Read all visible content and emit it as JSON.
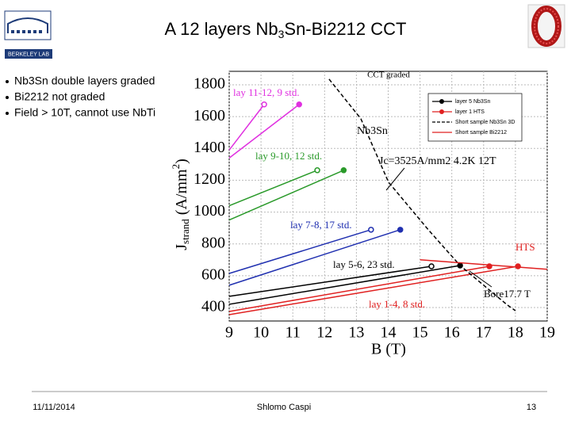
{
  "title_parts": [
    "A 12 layers Nb",
    "3",
    "Sn-Bi2212 CCT"
  ],
  "logo_text": "BERKELEY LAB",
  "bullets": [
    "Nb3Sn double layers graded",
    "Bi2212 not graded",
    "Field > 10T, cannot use NbTi"
  ],
  "footer": {
    "date": "11/11/2014",
    "author": "Shlomo Caspi",
    "page": "13"
  },
  "chart_data": {
    "type": "line",
    "title": "CCT graded",
    "xlabel": "B (T)",
    "ylabel_parts": [
      "J",
      "strand",
      " (A/mm",
      "2",
      ")"
    ],
    "xlim": [
      9,
      19
    ],
    "xticks": [
      9,
      10,
      11,
      12,
      13,
      14,
      15,
      16,
      17,
      18,
      19
    ],
    "ylim": [
      315,
      1885
    ],
    "yticks": [
      400,
      600,
      800,
      1000,
      1200,
      1400,
      1600,
      1800
    ],
    "grid": true,
    "legend": "upper right",
    "series": [
      {
        "color": "#e030e0",
        "end_marker": "open",
        "x": [
          9,
          10.1
        ],
        "values": [
          1390,
          1677
        ]
      },
      {
        "color": "#e030e0",
        "end_marker": "filled",
        "x": [
          9,
          11.2
        ],
        "values": [
          1340,
          1677
        ]
      },
      {
        "color": "#2a9a2a",
        "end_marker": "open",
        "x": [
          9,
          11.77
        ],
        "values": [
          1040,
          1263
        ]
      },
      {
        "color": "#2a9a2a",
        "end_marker": "filled",
        "x": [
          9,
          12.6
        ],
        "values": [
          950,
          1263
        ]
      },
      {
        "color": "#2030b0",
        "end_marker": "open",
        "x": [
          9,
          13.46
        ],
        "values": [
          614,
          889
        ]
      },
      {
        "color": "#2030b0",
        "end_marker": "filled",
        "x": [
          9,
          14.38
        ],
        "values": [
          540,
          889
        ]
      },
      {
        "color": "#000000",
        "end_marker": "open",
        "x": [
          9,
          15.36
        ],
        "values": [
          470,
          659
        ]
      },
      {
        "name": "layer 5 Nb3Sn",
        "color": "#000000",
        "end_marker": "filled",
        "x": [
          9,
          16.26
        ],
        "values": [
          420,
          664
        ]
      },
      {
        "color": "#e02020",
        "end_marker": "filled",
        "x": [
          9,
          17.18
        ],
        "values": [
          375,
          659
        ]
      },
      {
        "name": "layer 1 HTS",
        "color": "#e02020",
        "end_marker": "filled",
        "x": [
          9,
          18.08
        ],
        "values": [
          355,
          659
        ]
      },
      {
        "name": "Short sample Nb3Sn 3D",
        "color": "#000000",
        "dash": true,
        "x": [
          12.14,
          13.14,
          14.01,
          15.26,
          16.26,
          17,
          17.75,
          18
        ],
        "values": [
          1836,
          1587,
          1188,
          889,
          664,
          540,
          415,
          380
        ]
      },
      {
        "name": "Short sample Bi2212",
        "color": "#e02020",
        "x": [
          15,
          19
        ],
        "values": [
          700,
          640
        ]
      }
    ],
    "annotations": [
      {
        "text": "lay 11-12, 9 std.",
        "color": "#e030e0"
      },
      {
        "text": "lay 9-10, 12 std.",
        "color": "#2a9a2a"
      },
      {
        "text": "Nb3Sn",
        "color": "#000000"
      },
      {
        "text": "Jc=3525A/mm2 4.2K 12T",
        "color": "#000000"
      },
      {
        "text": "lay 7-8, 17 std.",
        "color": "#2030b0"
      },
      {
        "text": "HTS",
        "color": "#e02020"
      },
      {
        "text": "lay 5-6, 23 std.",
        "color": "#000000"
      },
      {
        "text": "Bore17.7 T",
        "color": "#000000"
      },
      {
        "text": "lay 1-4, 8 std.",
        "color": "#e02020"
      }
    ]
  }
}
